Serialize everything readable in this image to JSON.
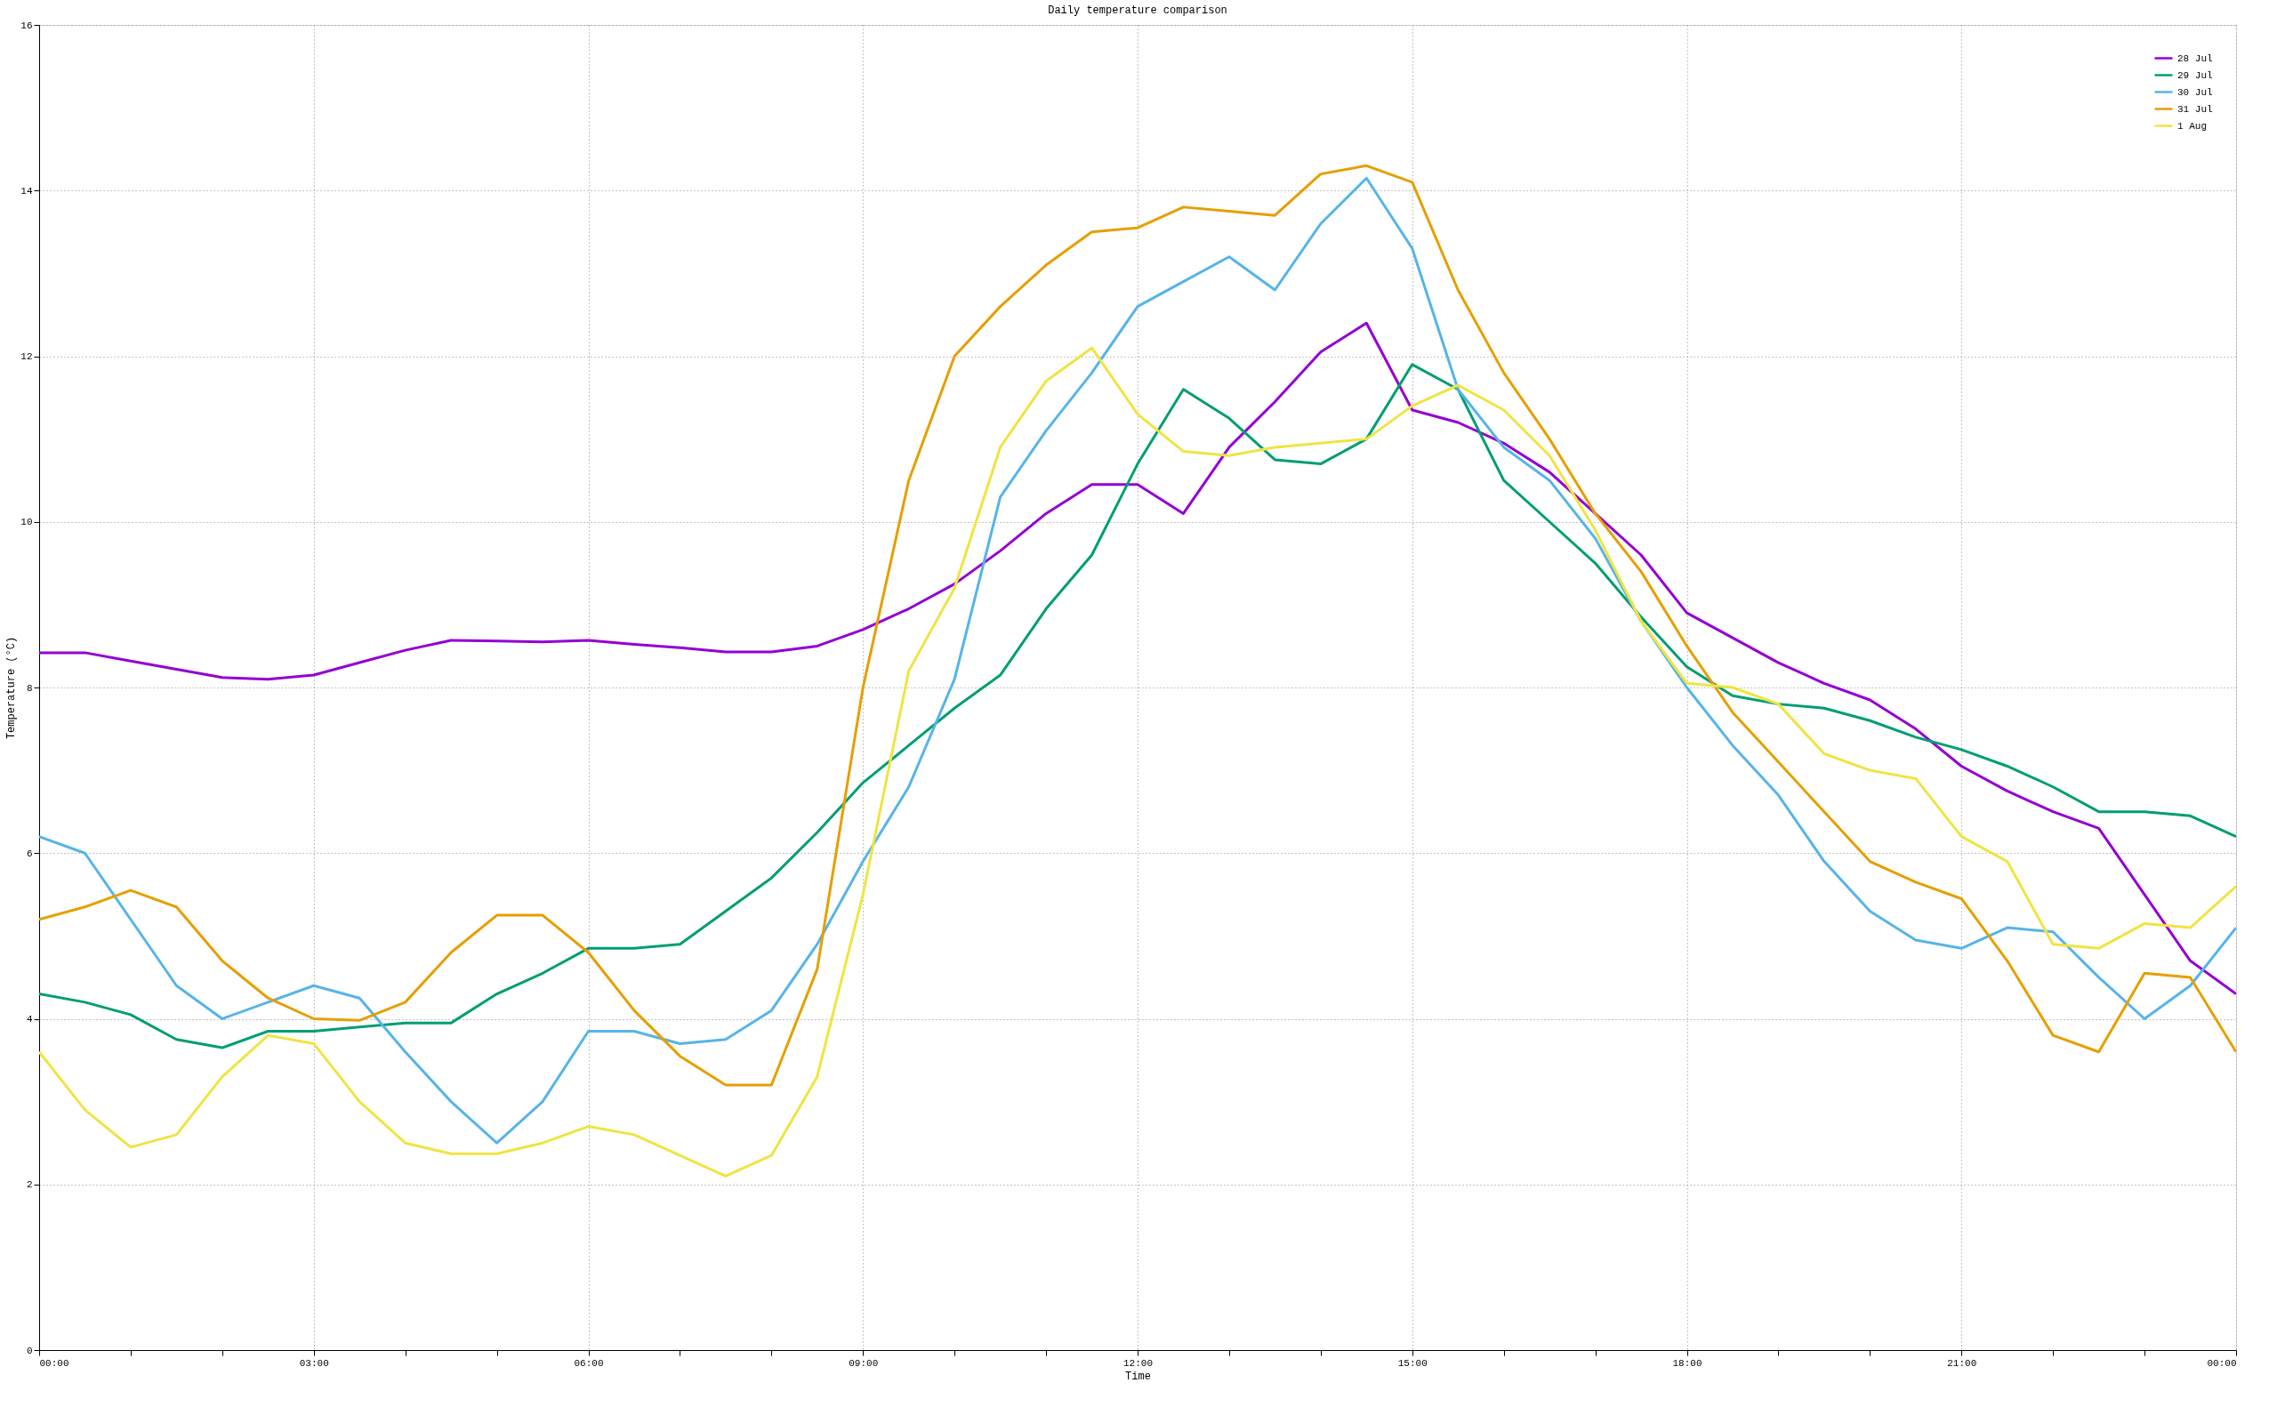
{
  "chart_data": {
    "type": "line",
    "title": "Daily temperature comparison",
    "xlabel": "Time",
    "ylabel": "Temperature (°C)",
    "x": [
      0,
      0.5,
      1,
      1.5,
      2,
      2.5,
      3,
      3.5,
      4,
      4.5,
      5,
      5.5,
      6,
      6.5,
      7,
      7.5,
      8,
      8.5,
      9,
      9.5,
      10,
      10.5,
      11,
      11.5,
      12,
      12.5,
      13,
      13.5,
      14,
      14.5,
      15,
      15.5,
      16,
      16.5,
      17,
      17.5,
      18,
      18.5,
      19,
      19.5,
      20,
      20.5,
      21,
      21.5,
      22,
      22.5,
      23,
      23.5,
      24
    ],
    "series": [
      {
        "name": "28 Jul",
        "color": "#9400d3",
        "values": [
          8.42,
          8.42,
          8.32,
          8.22,
          8.12,
          8.1,
          8.15,
          8.3,
          8.45,
          8.57,
          8.56,
          8.55,
          8.57,
          8.52,
          8.48,
          8.43,
          8.43,
          8.5,
          8.7,
          8.95,
          9.25,
          9.65,
          10.1,
          10.45,
          10.45,
          10.1,
          10.9,
          11.45,
          12.05,
          12.4,
          11.35,
          11.2,
          10.95,
          10.6,
          10.1,
          9.6,
          8.9,
          8.6,
          8.3,
          8.05,
          7.85,
          7.5,
          7.05,
          6.75,
          6.5,
          6.3,
          5.5,
          4.7,
          4.3
        ]
      },
      {
        "name": "29 Jul",
        "color": "#009e73",
        "values": [
          4.3,
          4.2,
          4.05,
          3.75,
          3.65,
          3.85,
          3.85,
          3.9,
          3.95,
          3.95,
          4.3,
          4.55,
          4.85,
          4.85,
          4.9,
          5.3,
          5.7,
          6.25,
          6.85,
          7.3,
          7.75,
          8.15,
          8.95,
          9.6,
          10.7,
          11.6,
          11.25,
          10.75,
          10.7,
          11.0,
          11.9,
          11.6,
          10.5,
          10.0,
          9.5,
          8.85,
          8.25,
          7.9,
          7.8,
          7.75,
          7.6,
          7.4,
          7.25,
          7.05,
          6.8,
          6.5,
          6.5,
          6.45,
          6.2
        ]
      },
      {
        "name": "30 Jul",
        "color": "#56b4e9",
        "values": [
          6.2,
          6.0,
          5.2,
          4.4,
          4.0,
          4.2,
          4.4,
          4.25,
          3.6,
          3.0,
          2.5,
          3.0,
          3.85,
          3.85,
          3.7,
          3.75,
          4.1,
          4.9,
          5.9,
          6.8,
          8.1,
          10.3,
          11.1,
          11.8,
          12.6,
          12.9,
          13.2,
          12.8,
          13.6,
          14.15,
          13.3,
          11.6,
          10.9,
          10.5,
          9.8,
          8.8,
          8.0,
          7.3,
          6.7,
          5.9,
          5.3,
          4.95,
          4.85,
          5.1,
          5.05,
          4.5,
          4.0,
          4.4,
          5.1
        ]
      },
      {
        "name": "31 Jul",
        "color": "#e69f00",
        "values": [
          5.2,
          5.35,
          5.55,
          5.35,
          4.7,
          4.25,
          4.0,
          3.98,
          4.2,
          4.8,
          5.25,
          5.25,
          4.8,
          4.1,
          3.55,
          3.2,
          3.2,
          4.6,
          8.0,
          10.5,
          12.0,
          12.6,
          13.1,
          13.5,
          13.55,
          13.8,
          13.75,
          13.7,
          14.2,
          14.3,
          14.1,
          12.8,
          11.8,
          11.0,
          10.1,
          9.4,
          8.5,
          7.7,
          7.1,
          6.5,
          5.9,
          5.65,
          5.45,
          4.7,
          3.8,
          3.6,
          4.55,
          4.5,
          3.6
        ]
      },
      {
        "name": "1 Aug",
        "color": "#f0e442",
        "values": [
          3.6,
          2.9,
          2.45,
          2.6,
          3.3,
          3.8,
          3.7,
          3.0,
          2.5,
          2.37,
          2.37,
          2.5,
          2.7,
          2.6,
          2.35,
          2.1,
          2.35,
          3.3,
          5.5,
          8.2,
          9.2,
          10.9,
          11.7,
          12.1,
          11.3,
          10.85,
          10.8,
          10.9,
          10.95,
          11.0,
          11.4,
          11.65,
          11.35,
          10.8,
          9.9,
          8.8,
          8.05,
          8.0,
          7.8,
          7.2,
          7.0,
          6.9,
          6.2,
          5.9,
          4.9,
          4.85,
          5.15,
          5.1,
          5.6
        ]
      }
    ],
    "xlim": [
      0,
      24
    ],
    "xticks": [
      {
        "value": 0,
        "label": "00:00"
      },
      {
        "value": 1,
        "label": null
      },
      {
        "value": 2,
        "label": null
      },
      {
        "value": 3,
        "label": "03:00"
      },
      {
        "value": 4,
        "label": null
      },
      {
        "value": 5,
        "label": null
      },
      {
        "value": 6,
        "label": "06:00"
      },
      {
        "value": 7,
        "label": null
      },
      {
        "value": 8,
        "label": null
      },
      {
        "value": 9,
        "label": "09:00"
      },
      {
        "value": 10,
        "label": null
      },
      {
        "value": 11,
        "label": null
      },
      {
        "value": 12,
        "label": "12:00"
      },
      {
        "value": 13,
        "label": null
      },
      {
        "value": 14,
        "label": null
      },
      {
        "value": 15,
        "label": "15:00"
      },
      {
        "value": 16,
        "label": null
      },
      {
        "value": 17,
        "label": null
      },
      {
        "value": 18,
        "label": "18:00"
      },
      {
        "value": 19,
        "label": null
      },
      {
        "value": 20,
        "label": null
      },
      {
        "value": 21,
        "label": "21:00"
      },
      {
        "value": 22,
        "label": null
      },
      {
        "value": 23,
        "label": null
      },
      {
        "value": 24,
        "label": "00:00"
      }
    ],
    "ylim": [
      0,
      16
    ],
    "yticks": [
      0,
      2,
      4,
      6,
      8,
      10,
      12,
      14,
      16
    ],
    "grid": true,
    "legend": "top right",
    "marker": "none",
    "line_style": "solid"
  }
}
